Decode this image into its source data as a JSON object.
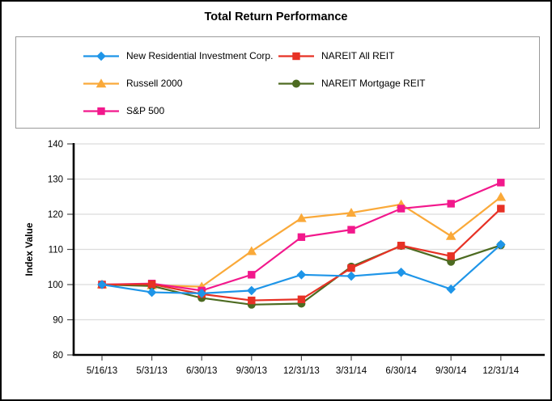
{
  "page": {
    "title": "Total Return Performance"
  },
  "chart_data": {
    "type": "line",
    "title": "Total Return Performance",
    "xlabel": "",
    "ylabel": "Index Value",
    "ylim": [
      80,
      140
    ],
    "yticks": [
      80,
      90,
      100,
      110,
      120,
      130,
      140
    ],
    "grid": "horizontal",
    "legend_position": "top-box-two-columns",
    "categories": [
      "5/16/13",
      "5/31/13",
      "6/30/13",
      "9/30/13",
      "12/31/13",
      "3/31/14",
      "6/30/14",
      "9/30/14",
      "12/31/14"
    ],
    "series": [
      {
        "name": "New Residential Investment Corp.",
        "marker": "diamond",
        "color": "#1E95E8",
        "values": [
          100.0,
          97.8,
          97.5,
          98.3,
          102.8,
          102.4,
          103.5,
          98.7,
          111.4
        ]
      },
      {
        "name": "NAREIT All REIT",
        "marker": "square",
        "color": "#E73125",
        "values": [
          100.0,
          100.1,
          97.3,
          95.5,
          95.8,
          104.7,
          111.1,
          108.1,
          121.6
        ]
      },
      {
        "name": "Russell 2000",
        "marker": "triangle",
        "color": "#FAA939",
        "values": [
          100.0,
          99.8,
          99.4,
          109.5,
          118.9,
          120.4,
          122.8,
          113.8,
          124.9
        ]
      },
      {
        "name": "NAREIT Mortgage REIT",
        "marker": "circle",
        "color": "#4D6B21",
        "values": [
          100.0,
          99.6,
          96.2,
          94.3,
          94.6,
          105.1,
          111.0,
          106.5,
          111.2
        ]
      },
      {
        "name": "S&P 500",
        "marker": "square",
        "color": "#F2188C",
        "values": [
          100.0,
          100.3,
          98.3,
          102.8,
          113.5,
          115.6,
          121.6,
          123.0,
          129.0
        ]
      }
    ],
    "draw_order": [
      2,
      3,
      4,
      1,
      0
    ]
  }
}
